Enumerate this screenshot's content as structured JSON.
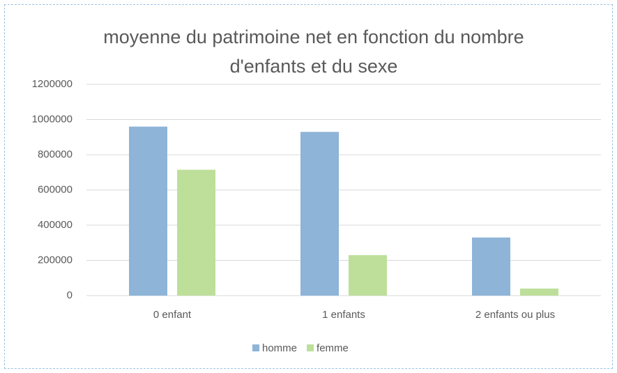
{
  "chart_data": {
    "type": "bar",
    "title": "moyenne du patrimoine net en fonction du nombre d'enfants et du sexe",
    "categories": [
      "0 enfant",
      "1 enfants",
      "2 enfants ou plus"
    ],
    "series": [
      {
        "name": "homme",
        "color": "#8eb4d7",
        "values": [
          960000,
          930000,
          330000
        ]
      },
      {
        "name": "femme",
        "color": "#bddf9a",
        "values": [
          715000,
          230000,
          40000
        ]
      }
    ],
    "ylim": [
      0,
      1200000
    ],
    "yticks": [
      0,
      200000,
      400000,
      600000,
      800000,
      1000000,
      1200000
    ],
    "grid": true,
    "legend": "bottom"
  }
}
